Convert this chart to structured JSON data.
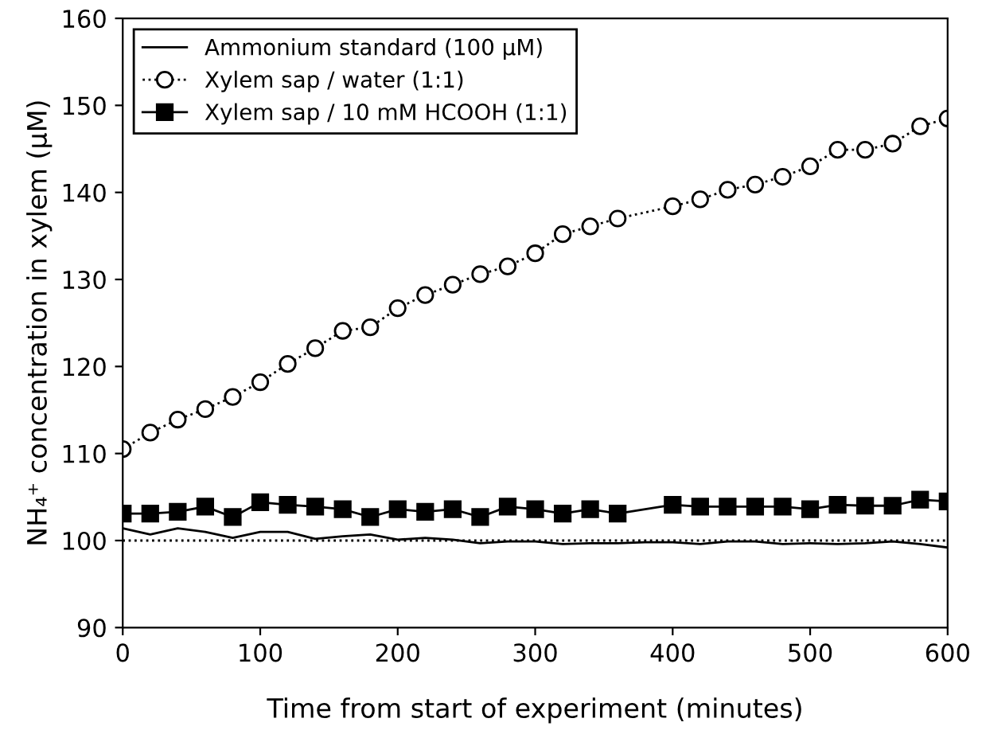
{
  "chart_data": {
    "type": "line",
    "xlabel": "Time from start of experiment (minutes)",
    "ylabel": "NH₄⁺ concentration in xylem (µM)",
    "xlim": [
      0,
      600
    ],
    "ylim": [
      90,
      160
    ],
    "xticks": [
      0,
      100,
      200,
      300,
      400,
      500,
      600
    ],
    "yticks": [
      90,
      100,
      110,
      120,
      130,
      140,
      150,
      160
    ],
    "grid": false,
    "legend": "top left",
    "ref_lines": [
      {
        "axis": "y",
        "value": 100,
        "color": "#000000",
        "line_style": "dotted"
      }
    ],
    "series": [
      {
        "name": "Ammonium standard (100 µM)",
        "color": "#000000",
        "marker": "none",
        "line_style": "solid",
        "x": [
          0,
          20,
          40,
          60,
          80,
          100,
          120,
          140,
          160,
          180,
          200,
          220,
          240,
          260,
          280,
          300,
          320,
          340,
          360,
          380,
          400,
          420,
          440,
          460,
          480,
          500,
          520,
          540,
          560,
          580,
          600
        ],
        "values": [
          101.4,
          100.7,
          101.4,
          101.0,
          100.3,
          101.0,
          101.0,
          100.2,
          100.5,
          100.7,
          100.1,
          100.3,
          100.1,
          99.7,
          99.9,
          99.9,
          99.6,
          99.7,
          99.7,
          99.8,
          99.8,
          99.6,
          99.9,
          99.9,
          99.6,
          99.7,
          99.6,
          99.7,
          99.9,
          99.6,
          99.2
        ]
      },
      {
        "name": "Xylem sap / water (1:1)",
        "color": "#000000",
        "marker": "circle",
        "line_style": "dotted",
        "x": [
          0,
          20,
          40,
          60,
          80,
          100,
          120,
          140,
          160,
          180,
          200,
          220,
          240,
          260,
          280,
          300,
          320,
          340,
          360,
          400,
          420,
          440,
          460,
          480,
          500,
          520,
          540,
          560,
          580,
          600
        ],
        "values": [
          110.5,
          112.4,
          113.9,
          115.1,
          116.5,
          118.2,
          120.3,
          122.1,
          124.1,
          124.5,
          126.7,
          128.2,
          129.4,
          130.6,
          131.5,
          133.0,
          135.2,
          136.1,
          137.0,
          138.4,
          139.2,
          140.3,
          140.9,
          141.8,
          143.0,
          144.9,
          144.9,
          145.6,
          147.6,
          148.5
        ]
      },
      {
        "name": "Xylem sap / 10 mM HCOOH (1:1)",
        "color": "#000000",
        "marker": "square",
        "line_style": "solid",
        "x": [
          0,
          20,
          40,
          60,
          80,
          100,
          120,
          140,
          160,
          180,
          200,
          220,
          240,
          260,
          280,
          300,
          320,
          340,
          360,
          400,
          420,
          440,
          460,
          480,
          500,
          520,
          540,
          560,
          580,
          600
        ],
        "values": [
          103.1,
          103.1,
          103.3,
          103.9,
          102.7,
          104.4,
          104.1,
          103.9,
          103.6,
          102.7,
          103.6,
          103.3,
          103.6,
          102.7,
          103.9,
          103.6,
          103.1,
          103.6,
          103.1,
          104.1,
          103.9,
          103.9,
          103.9,
          103.9,
          103.6,
          104.1,
          104.0,
          104.0,
          104.7,
          104.5
        ]
      }
    ]
  }
}
